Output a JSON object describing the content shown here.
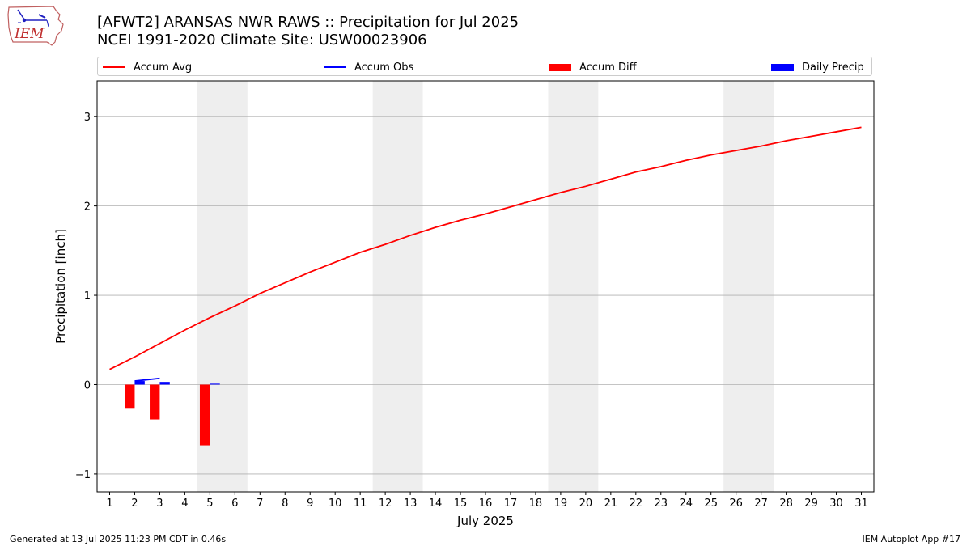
{
  "header": {
    "title": "[AFWT2] ARANSAS NWR RAWS :: Precipitation for Jul 2025",
    "subtitle": "NCEI 1991-2020 Climate Site: USW00023906"
  },
  "logo": {
    "text": "IEM",
    "icon": "iowa-state-outline-icon"
  },
  "legend": {
    "items": [
      {
        "label": "Accum Avg",
        "kind": "line",
        "color": "#ff0000"
      },
      {
        "label": "Accum Obs",
        "kind": "line",
        "color": "#0000ff"
      },
      {
        "label": "Accum Diff",
        "kind": "patch",
        "color": "#ff0000"
      },
      {
        "label": "Daily Precip",
        "kind": "patch",
        "color": "#0000ff"
      }
    ]
  },
  "footer": {
    "left": "Generated at 13 Jul 2025 11:23 PM CDT in 0.46s",
    "right": "IEM Autoplot App #17"
  },
  "chart_data": {
    "type": "bar",
    "xlabel": "July 2025",
    "ylabel": "Precipitation [inch]",
    "xlim": [
      0.5,
      31.5
    ],
    "ylim": [
      -1.2,
      3.4
    ],
    "x_ticks": [
      1,
      2,
      3,
      4,
      5,
      6,
      7,
      8,
      9,
      10,
      11,
      12,
      13,
      14,
      15,
      16,
      17,
      18,
      19,
      20,
      21,
      22,
      23,
      24,
      25,
      26,
      27,
      28,
      29,
      30,
      31
    ],
    "y_ticks": [
      -1,
      0,
      1,
      2,
      3
    ],
    "y_tick_labels": [
      "−1",
      "0",
      "1",
      "2",
      "3"
    ],
    "grid": "horizontal",
    "weekend_shading": [
      [
        4.5,
        6.5
      ],
      [
        11.5,
        13.5
      ],
      [
        18.5,
        20.5
      ],
      [
        25.5,
        27.5
      ]
    ],
    "colors": {
      "accum_avg": "#ff0000",
      "accum_obs": "#0000ff",
      "accum_diff": "#ff0000",
      "daily_precip": "#0000ff",
      "weekend": "#eeeeee",
      "grid": "#b0b0b0"
    },
    "series": [
      {
        "name": "Accum Avg",
        "kind": "line",
        "x": [
          1,
          2,
          3,
          4,
          5,
          6,
          7,
          8,
          9,
          10,
          11,
          12,
          13,
          14,
          15,
          16,
          17,
          18,
          19,
          20,
          21,
          22,
          23,
          24,
          25,
          26,
          27,
          28,
          29,
          30,
          31
        ],
        "values": [
          0.17,
          0.31,
          0.46,
          0.61,
          0.75,
          0.88,
          1.02,
          1.14,
          1.26,
          1.37,
          1.48,
          1.57,
          1.67,
          1.76,
          1.84,
          1.91,
          1.99,
          2.07,
          2.15,
          2.22,
          2.3,
          2.38,
          2.44,
          2.51,
          2.57,
          2.62,
          2.67,
          2.73,
          2.78,
          2.83,
          2.88
        ]
      },
      {
        "name": "Accum Obs",
        "kind": "line",
        "x": [
          2,
          3
        ],
        "values": [
          0.04,
          0.07
        ]
      },
      {
        "name": "Accum Diff",
        "kind": "bar",
        "x": [
          2,
          3,
          5
        ],
        "values": [
          -0.27,
          -0.39,
          -0.68
        ]
      },
      {
        "name": "Daily Precip",
        "kind": "bar",
        "x": [
          2,
          3,
          5
        ],
        "values": [
          0.04,
          0.03,
          0.01
        ]
      }
    ]
  }
}
